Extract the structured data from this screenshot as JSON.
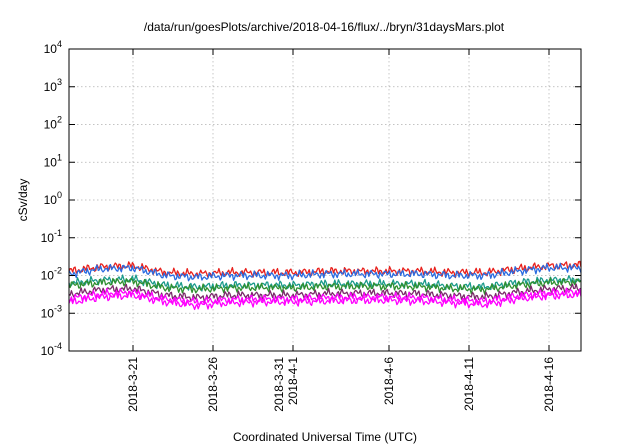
{
  "chart_data": {
    "type": "line",
    "title": "/data/run/goesPlots/archive/2018-04-16/flux/../bryn/31daysMars.plot",
    "xlabel": "Coordinated Universal Time (UTC)",
    "ylabel": "cSv/day",
    "yscale": "log",
    "ylim": [
      0.0001,
      10000
    ],
    "xlim": [
      "2018-03-17T00:00",
      "2018-04-18T00:00"
    ],
    "grid": true,
    "y_ticks": [
      {
        "base": "10",
        "exp": "-4",
        "value": 0.0001
      },
      {
        "base": "10",
        "exp": "-3",
        "value": 0.001
      },
      {
        "base": "10",
        "exp": "-2",
        "value": 0.01
      },
      {
        "base": "10",
        "exp": "-1",
        "value": 0.1
      },
      {
        "base": "10",
        "exp": "0",
        "value": 1
      },
      {
        "base": "10",
        "exp": "1",
        "value": 10
      },
      {
        "base": "10",
        "exp": "2",
        "value": 100
      },
      {
        "base": "10",
        "exp": "3",
        "value": 1000
      },
      {
        "base": "10",
        "exp": "4",
        "value": 10000
      }
    ],
    "x_ticks": [
      {
        "date": "2018-03-21",
        "lines": [
          "2018-3-21"
        ]
      },
      {
        "date": "2018-03-26",
        "lines": [
          "2018-3-26"
        ]
      },
      {
        "date": "2018-03-31",
        "lines": [
          "2018-3-31",
          "2018-4-1"
        ]
      },
      {
        "date": "2018-04-06",
        "lines": [
          "2018-4-6"
        ]
      },
      {
        "date": "2018-04-11",
        "lines": [
          "2018-4-11"
        ]
      },
      {
        "date": "2018-04-16",
        "lines": [
          "2018-4-16"
        ]
      }
    ],
    "x_dates": [
      "2018-03-17",
      "2018-03-19",
      "2018-03-21",
      "2018-03-23",
      "2018-03-25",
      "2018-03-27",
      "2018-03-29",
      "2018-03-31",
      "2018-04-02",
      "2018-04-04",
      "2018-04-06",
      "2018-04-08",
      "2018-04-10",
      "2018-04-12",
      "2018-04-14",
      "2018-04-16",
      "2018-04-18"
    ],
    "series": [
      {
        "color": "#e8201c",
        "values": [
          0.013,
          0.017,
          0.018,
          0.012,
          0.011,
          0.012,
          0.012,
          0.012,
          0.013,
          0.013,
          0.013,
          0.013,
          0.012,
          0.012,
          0.015,
          0.018,
          0.019
        ]
      },
      {
        "color": "#2a6be0",
        "values": [
          0.011,
          0.015,
          0.016,
          0.01,
          0.009,
          0.01,
          0.01,
          0.01,
          0.011,
          0.011,
          0.011,
          0.011,
          0.01,
          0.01,
          0.013,
          0.016,
          0.016
        ]
      },
      {
        "color": "#1a9a8a",
        "values": [
          0.0062,
          0.0075,
          0.008,
          0.0055,
          0.005,
          0.0055,
          0.0056,
          0.0055,
          0.006,
          0.006,
          0.006,
          0.006,
          0.0052,
          0.005,
          0.0065,
          0.0075,
          0.0078
        ]
      },
      {
        "color": "#2f8f2f",
        "values": [
          0.0055,
          0.0065,
          0.007,
          0.0047,
          0.0043,
          0.0047,
          0.0048,
          0.0047,
          0.0051,
          0.0052,
          0.0052,
          0.0051,
          0.0045,
          0.0043,
          0.0056,
          0.0065,
          0.0068
        ]
      },
      {
        "color": "#7a2a6a",
        "values": [
          0.0032,
          0.0042,
          0.0045,
          0.003,
          0.0026,
          0.003,
          0.003,
          0.003,
          0.0033,
          0.0034,
          0.0034,
          0.0033,
          0.0029,
          0.0027,
          0.0036,
          0.0044,
          0.0047
        ]
      },
      {
        "color": "#ff00ff",
        "values": [
          0.0024,
          0.0033,
          0.0036,
          0.0024,
          0.002,
          0.0023,
          0.0024,
          0.0024,
          0.0026,
          0.0027,
          0.0027,
          0.0026,
          0.0023,
          0.0021,
          0.0029,
          0.0035,
          0.0037
        ]
      },
      {
        "color": "#ff00ff",
        "values": [
          0.0019,
          0.0027,
          0.003,
          0.002,
          0.0016,
          0.0019,
          0.002,
          0.002,
          0.0021,
          0.0022,
          0.0022,
          0.0021,
          0.0019,
          0.0017,
          0.0024,
          0.0029,
          0.0031
        ]
      }
    ]
  }
}
